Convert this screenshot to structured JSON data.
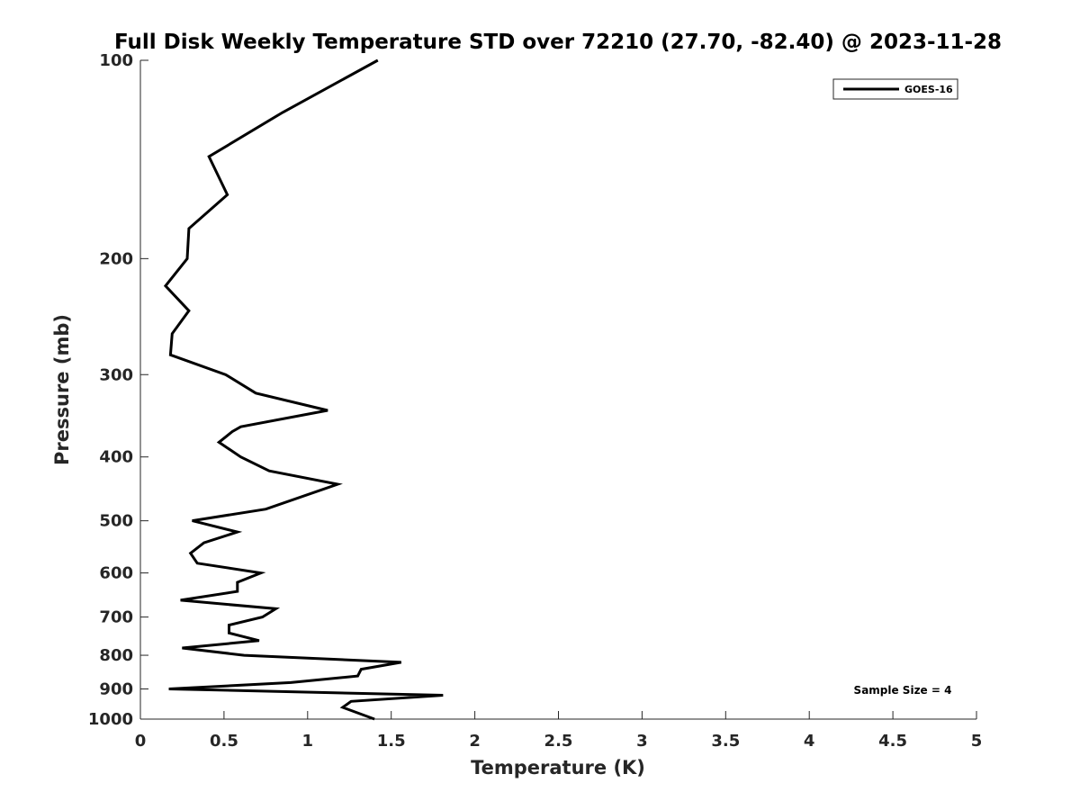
{
  "chart_data": {
    "type": "line",
    "title": "Full Disk Weekly Temperature STD over 72210 (27.70, -82.40) @ 2023-11-28",
    "xlabel": "Temperature (K)",
    "ylabel": "Pressure (mb)",
    "xlim": [
      0,
      5
    ],
    "ylim": [
      100,
      1000
    ],
    "yscale": "log",
    "yreversed": true,
    "grid": false,
    "xticks": [
      0,
      0.5,
      1,
      1.5,
      2,
      2.5,
      3,
      3.5,
      4,
      4.5,
      5
    ],
    "xtick_labels": [
      "0",
      "0.5",
      "1",
      "1.5",
      "2",
      "2.5",
      "3",
      "3.5",
      "4",
      "4.5",
      "5"
    ],
    "yticks": [
      100,
      200,
      300,
      400,
      500,
      600,
      700,
      800,
      900,
      1000
    ],
    "ytick_labels": [
      "100",
      "200",
      "300",
      "400",
      "500",
      "600",
      "700",
      "800",
      "900",
      "1000"
    ],
    "legend": {
      "position": "top-right",
      "entries": [
        "GOES-16"
      ]
    },
    "annotation": "Sample Size = 4",
    "series": [
      {
        "name": "GOES-16",
        "color": "#000000",
        "pressure": [
          100,
          120,
          140,
          160,
          180,
          200,
          220,
          240,
          260,
          280,
          300,
          320,
          340,
          360,
          366,
          380,
          400,
          420,
          440,
          480,
          500,
          520,
          540,
          560,
          580,
          600,
          620,
          640,
          660,
          680,
          700,
          720,
          740,
          760,
          780,
          800,
          820,
          840,
          860,
          880,
          900,
          920,
          940,
          960,
          1000
        ],
        "temperature_std": [
          1.42,
          0.85,
          0.41,
          0.52,
          0.29,
          0.28,
          0.15,
          0.29,
          0.19,
          0.18,
          0.51,
          0.69,
          1.12,
          0.6,
          0.55,
          0.47,
          0.6,
          0.77,
          1.18,
          0.75,
          0.31,
          0.58,
          0.38,
          0.3,
          0.34,
          0.72,
          0.58,
          0.58,
          0.24,
          0.81,
          0.73,
          0.53,
          0.53,
          0.71,
          0.25,
          0.62,
          1.56,
          1.32,
          1.3,
          0.9,
          0.17,
          1.81,
          1.26,
          1.21,
          1.4
        ]
      }
    ]
  }
}
